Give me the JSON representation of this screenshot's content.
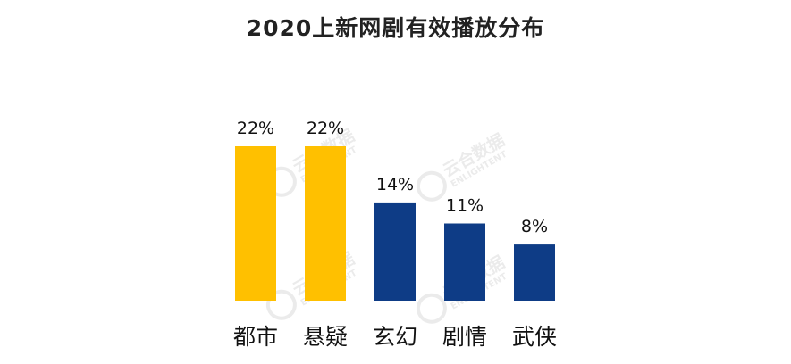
{
  "title": "2020上新网剧有效播放分布",
  "watermark": {
    "cn": "云合数据",
    "en": "ENLIGHTENT"
  },
  "chart_data": {
    "type": "bar",
    "title": "2020上新网剧有效播放分布",
    "categories": [
      "都市",
      "悬疑",
      "玄幻",
      "剧情",
      "武侠"
    ],
    "values": [
      22,
      22,
      14,
      11,
      8
    ],
    "value_labels": [
      "22%",
      "22%",
      "14%",
      "11%",
      "8%"
    ],
    "unit": "%",
    "colors": [
      "#FFC000",
      "#FFC000",
      "#0E3C86",
      "#0E3C86",
      "#0E3C86"
    ],
    "xlabel": "",
    "ylabel": "",
    "ylim": [
      0,
      22
    ],
    "grid": false
  }
}
